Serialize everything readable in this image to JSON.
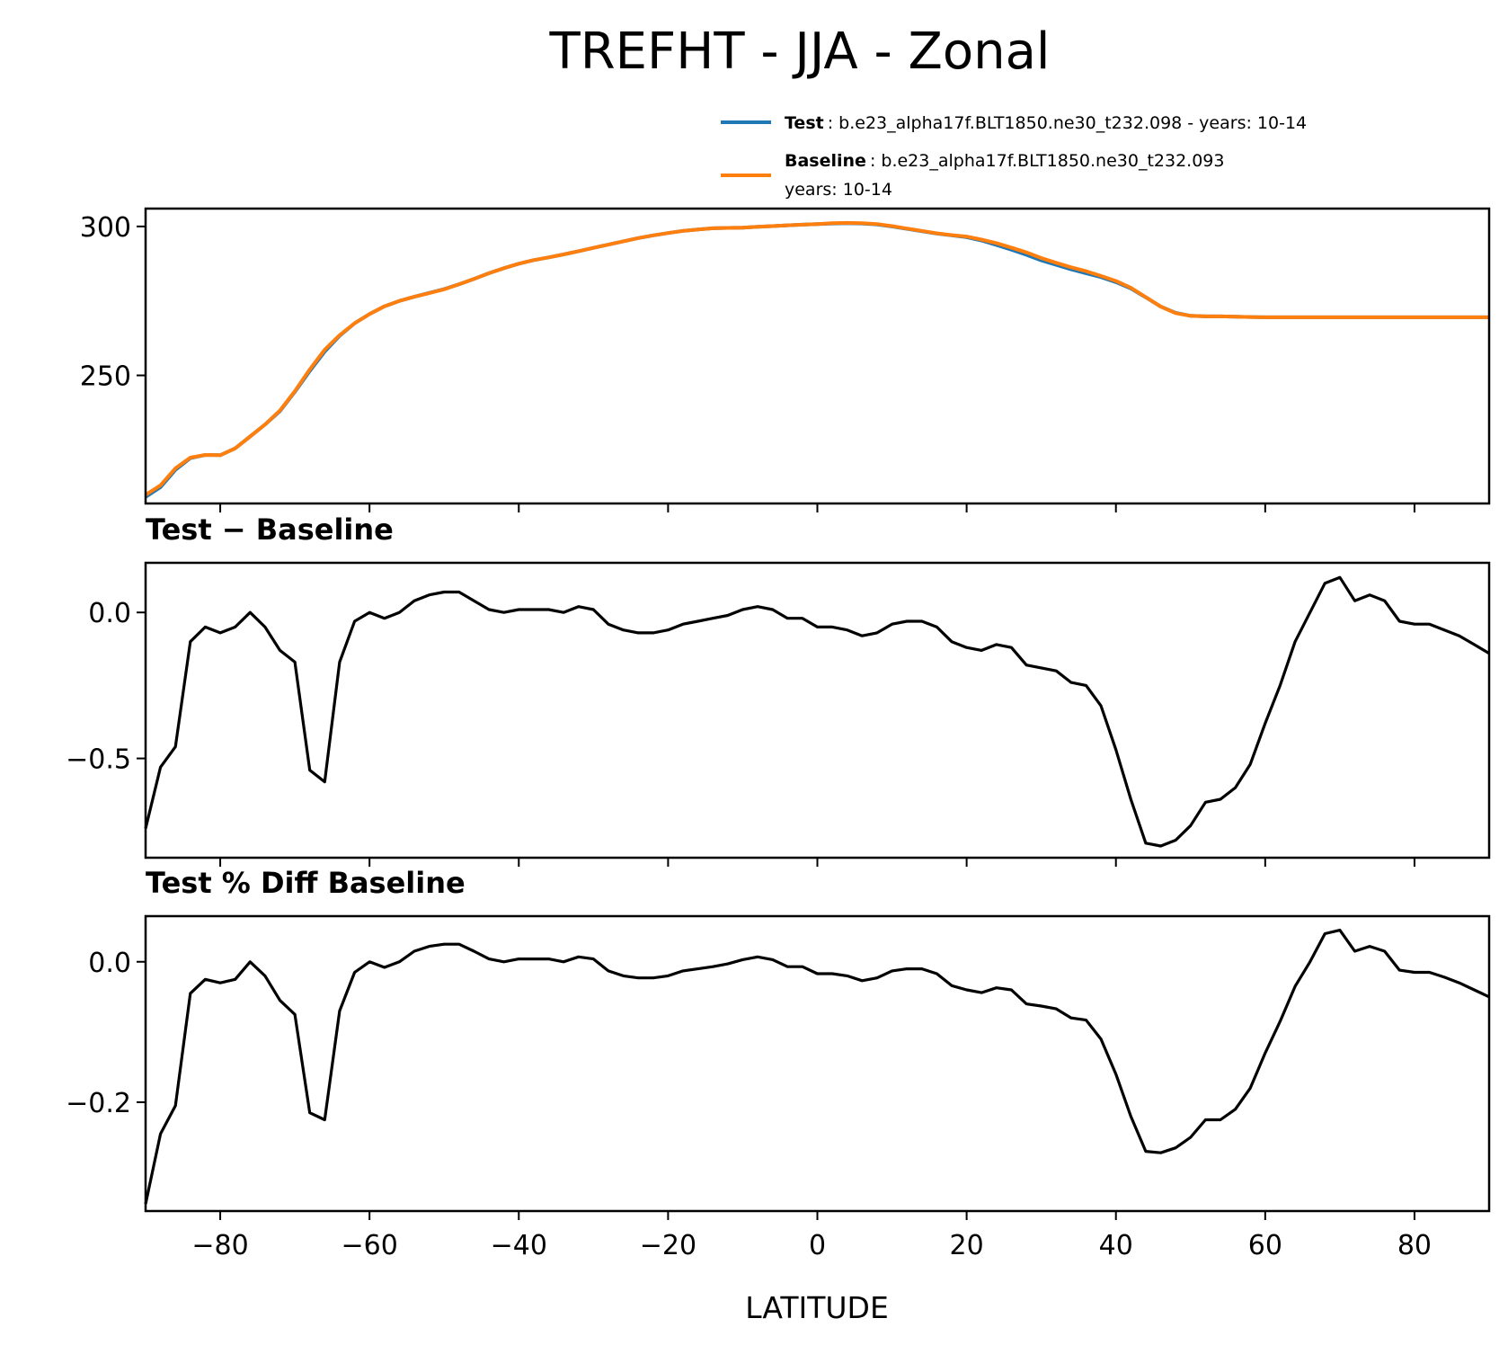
{
  "chart_data": {
    "type": "line",
    "title": "TREFHT - JJA - Zonal",
    "xlabel": "LATITUDE",
    "xlim": [
      -90,
      90
    ],
    "xticks": [
      -80,
      -60,
      -40,
      -20,
      0,
      20,
      40,
      60,
      80
    ],
    "xtick_labels": [
      "−80",
      "−60",
      "−40",
      "−20",
      "0",
      "20",
      "40",
      "60",
      "80"
    ],
    "legend": {
      "test_label": "Test",
      "test_desc": ": b.e23_alpha17f.BLT1850.ne30_t232.098 - years: 10-14",
      "base_label": "Baseline",
      "base_desc": ": b.e23_alpha17f.BLT1850.ne30_t232.093",
      "base_desc2": "years: 10-14",
      "position": "upper right, above top panel"
    },
    "colors": {
      "test": "#1f77b4",
      "baseline": "#ff7f0e",
      "diff": "#000000"
    },
    "x": [
      -90,
      -88,
      -86,
      -84,
      -82,
      -80,
      -78,
      -76,
      -74,
      -72,
      -70,
      -68,
      -66,
      -64,
      -62,
      -60,
      -58,
      -56,
      -54,
      -52,
      -50,
      -48,
      -46,
      -44,
      -42,
      -40,
      -38,
      -36,
      -34,
      -32,
      -30,
      -28,
      -26,
      -24,
      -22,
      -20,
      -18,
      -16,
      -14,
      -12,
      -10,
      -8,
      -6,
      -4,
      -2,
      0,
      2,
      4,
      6,
      8,
      10,
      12,
      14,
      16,
      18,
      20,
      22,
      24,
      26,
      28,
      30,
      32,
      34,
      36,
      38,
      40,
      42,
      44,
      46,
      48,
      50,
      52,
      54,
      56,
      58,
      60,
      62,
      64,
      66,
      68,
      70,
      72,
      74,
      76,
      78,
      80,
      82,
      84,
      86,
      88,
      90
    ],
    "panels": [
      {
        "name": "zonal-mean",
        "subtitle": "",
        "ylim": [
          207,
          306
        ],
        "yticks": [
          250,
          300
        ],
        "ytick_labels": [
          "250",
          "300"
        ],
        "series": [
          {
            "name": "Test",
            "values": [
              209.2,
              212.5,
              218.3,
              222.2,
              223.3,
              223.2,
              225.5,
              229.5,
              233.5,
              238.0,
              244.5,
              251.5,
              258.0,
              263.3,
              267.5,
              270.6,
              273.2,
              275.0,
              276.4,
              277.7,
              279.0,
              280.6,
              282.4,
              284.3,
              286.0,
              287.5,
              288.7,
              289.6,
              290.6,
              291.7,
              292.8,
              293.9,
              295.0,
              296.1,
              297.0,
              297.8,
              298.5,
              299.0,
              299.4,
              299.5,
              299.6,
              299.9,
              300.1,
              300.4,
              300.6,
              300.8,
              301.0,
              301.1,
              301.0,
              300.7,
              300.0,
              299.2,
              298.4,
              297.6,
              297.0,
              296.4,
              295.3,
              293.8,
              292.2,
              290.5,
              288.6,
              287.1,
              285.6,
              284.3,
              283.0,
              281.3,
              279.2,
              276.2,
              273.1,
              271.0,
              270.0,
              269.8,
              269.8,
              269.7,
              269.6,
              269.5,
              269.5,
              269.5,
              269.5,
              269.5,
              269.5,
              269.5,
              269.5,
              269.5,
              269.5,
              269.5,
              269.5,
              269.5,
              269.5,
              269.5,
              269.5
            ]
          },
          {
            "name": "Baseline",
            "values": [
              209.9,
              213.1,
              218.8,
              222.4,
              223.3,
              223.2,
              225.5,
              229.5,
              233.5,
              238.2,
              244.7,
              252.0,
              258.6,
              263.5,
              267.5,
              270.6,
              273.2,
              275.0,
              276.4,
              277.6,
              278.9,
              280.6,
              282.4,
              284.3,
              286.0,
              287.5,
              288.7,
              289.6,
              290.6,
              291.7,
              292.8,
              293.9,
              295.0,
              296.1,
              297.0,
              297.8,
              298.5,
              299.0,
              299.4,
              299.5,
              299.6,
              299.9,
              300.1,
              300.4,
              300.6,
              300.8,
              301.1,
              301.2,
              301.1,
              300.8,
              300.1,
              299.3,
              298.5,
              297.7,
              297.1,
              296.6,
              295.6,
              294.4,
              292.9,
              291.3,
              289.4,
              287.8,
              286.3,
              285.0,
              283.4,
              281.7,
              279.4,
              276.3,
              273.1,
              270.9,
              270.0,
              269.8,
              269.8,
              269.7,
              269.6,
              269.5,
              269.5,
              269.5,
              269.5,
              269.5,
              269.5,
              269.5,
              269.5,
              269.5,
              269.5,
              269.5,
              269.5,
              269.5,
              269.5,
              269.5,
              269.5
            ]
          }
        ]
      },
      {
        "name": "test-minus-baseline",
        "subtitle": "Test − Baseline",
        "ylim": [
          -0.84,
          0.17
        ],
        "yticks": [
          -0.5,
          0.0
        ],
        "ytick_labels": [
          "−0.5",
          "0.0"
        ],
        "series": [
          {
            "name": "Test − Baseline",
            "values": [
              -0.74,
              -0.53,
              -0.46,
              -0.1,
              -0.05,
              -0.07,
              -0.05,
              0.0,
              -0.05,
              -0.13,
              -0.17,
              -0.54,
              -0.58,
              -0.17,
              -0.03,
              0.0,
              -0.02,
              0.0,
              0.04,
              0.06,
              0.07,
              0.07,
              0.04,
              0.01,
              0.0,
              0.01,
              0.01,
              0.01,
              0.0,
              0.02,
              0.01,
              -0.04,
              -0.06,
              -0.07,
              -0.07,
              -0.06,
              -0.04,
              -0.03,
              -0.02,
              -0.01,
              0.01,
              0.02,
              0.01,
              -0.02,
              -0.02,
              -0.05,
              -0.05,
              -0.06,
              -0.08,
              -0.07,
              -0.04,
              -0.03,
              -0.03,
              -0.05,
              -0.1,
              -0.12,
              -0.13,
              -0.11,
              -0.12,
              -0.18,
              -0.19,
              -0.2,
              -0.24,
              -0.25,
              -0.32,
              -0.47,
              -0.64,
              -0.79,
              -0.8,
              -0.78,
              -0.73,
              -0.65,
              -0.64,
              -0.6,
              -0.52,
              -0.38,
              -0.25,
              -0.1,
              0.0,
              0.1,
              0.12,
              0.04,
              0.06,
              0.04,
              -0.03,
              -0.04,
              -0.04,
              -0.06,
              -0.08,
              -0.11,
              -0.14
            ]
          }
        ]
      },
      {
        "name": "test-percent-diff-baseline",
        "subtitle": "Test % Diff Baseline",
        "ylim": [
          -0.355,
          0.065
        ],
        "yticks": [
          -0.2,
          0.0
        ],
        "ytick_labels": [
          "−0.2",
          "0.0"
        ],
        "series": [
          {
            "name": "Test % Diff Baseline",
            "values": [
              -0.345,
              -0.245,
              -0.205,
              -0.045,
              -0.025,
              -0.03,
              -0.025,
              0.0,
              -0.02,
              -0.055,
              -0.075,
              -0.215,
              -0.225,
              -0.07,
              -0.015,
              0.0,
              -0.008,
              0.0,
              0.015,
              0.022,
              0.025,
              0.025,
              0.015,
              0.004,
              0.0,
              0.004,
              0.004,
              0.004,
              0.0,
              0.007,
              0.004,
              -0.013,
              -0.02,
              -0.023,
              -0.023,
              -0.02,
              -0.013,
              -0.01,
              -0.007,
              -0.003,
              0.003,
              0.007,
              0.003,
              -0.007,
              -0.007,
              -0.017,
              -0.017,
              -0.02,
              -0.027,
              -0.023,
              -0.013,
              -0.01,
              -0.01,
              -0.017,
              -0.034,
              -0.04,
              -0.044,
              -0.037,
              -0.04,
              -0.06,
              -0.063,
              -0.067,
              -0.08,
              -0.083,
              -0.11,
              -0.16,
              -0.22,
              -0.27,
              -0.272,
              -0.265,
              -0.25,
              -0.225,
              -0.225,
              -0.21,
              -0.18,
              -0.13,
              -0.085,
              -0.035,
              0.0,
              0.04,
              0.045,
              0.015,
              0.022,
              0.015,
              -0.012,
              -0.015,
              -0.015,
              -0.022,
              -0.03,
              -0.04,
              -0.05
            ]
          }
        ]
      }
    ]
  }
}
